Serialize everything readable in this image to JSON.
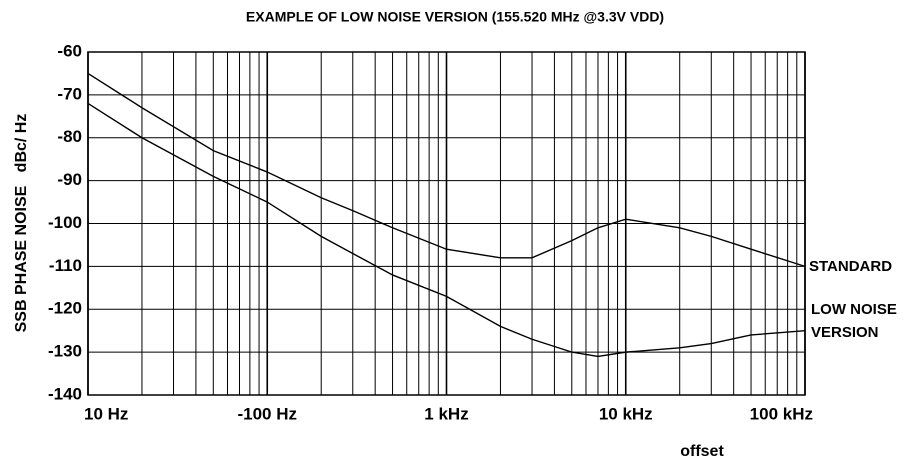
{
  "chart_data": {
    "type": "line",
    "title": "EXAMPLE OF LOW NOISE VERSION (155.520 MHz @3.3V VDD)",
    "y_label": "SSB PHASE NOISE   dBc/ Hz",
    "x_label": "offset",
    "xscale": "log",
    "grid": true,
    "x": [
      10,
      20,
      50,
      100,
      200,
      300,
      500,
      1000,
      2000,
      3000,
      5000,
      7000,
      10000,
      20000,
      30000,
      50000,
      100000
    ],
    "series": [
      {
        "name": "STANDARD",
        "color": "#000000",
        "values": [
          -65,
          -73,
          -83,
          -88,
          -94,
          -97,
          -101,
          -106,
          -108,
          -108,
          -104,
          -101,
          -99,
          -101,
          -103,
          -106,
          -110
        ]
      },
      {
        "name": "LOW NOISE VERSION",
        "color": "#000000",
        "values": [
          -72,
          -80,
          -89,
          -95,
          -103,
          -107,
          -112,
          -117,
          -124,
          -127,
          -130,
          -131,
          -130,
          -129,
          -128,
          -126,
          -125
        ]
      }
    ],
    "xlim": [
      10,
      100000
    ],
    "xticks": [
      {
        "value": 10,
        "label": "10 Hz"
      },
      {
        "value": 100,
        "label": "-100 Hz"
      },
      {
        "value": 1000,
        "label": "1 kHz"
      },
      {
        "value": 10000,
        "label": "10 kHz"
      },
      {
        "value": 100000,
        "label": "100 kHz"
      }
    ],
    "ylim": [
      -140,
      -60
    ],
    "yticks": [
      -140,
      -130,
      -120,
      -110,
      -100,
      -90,
      -80,
      -70,
      -60
    ]
  }
}
